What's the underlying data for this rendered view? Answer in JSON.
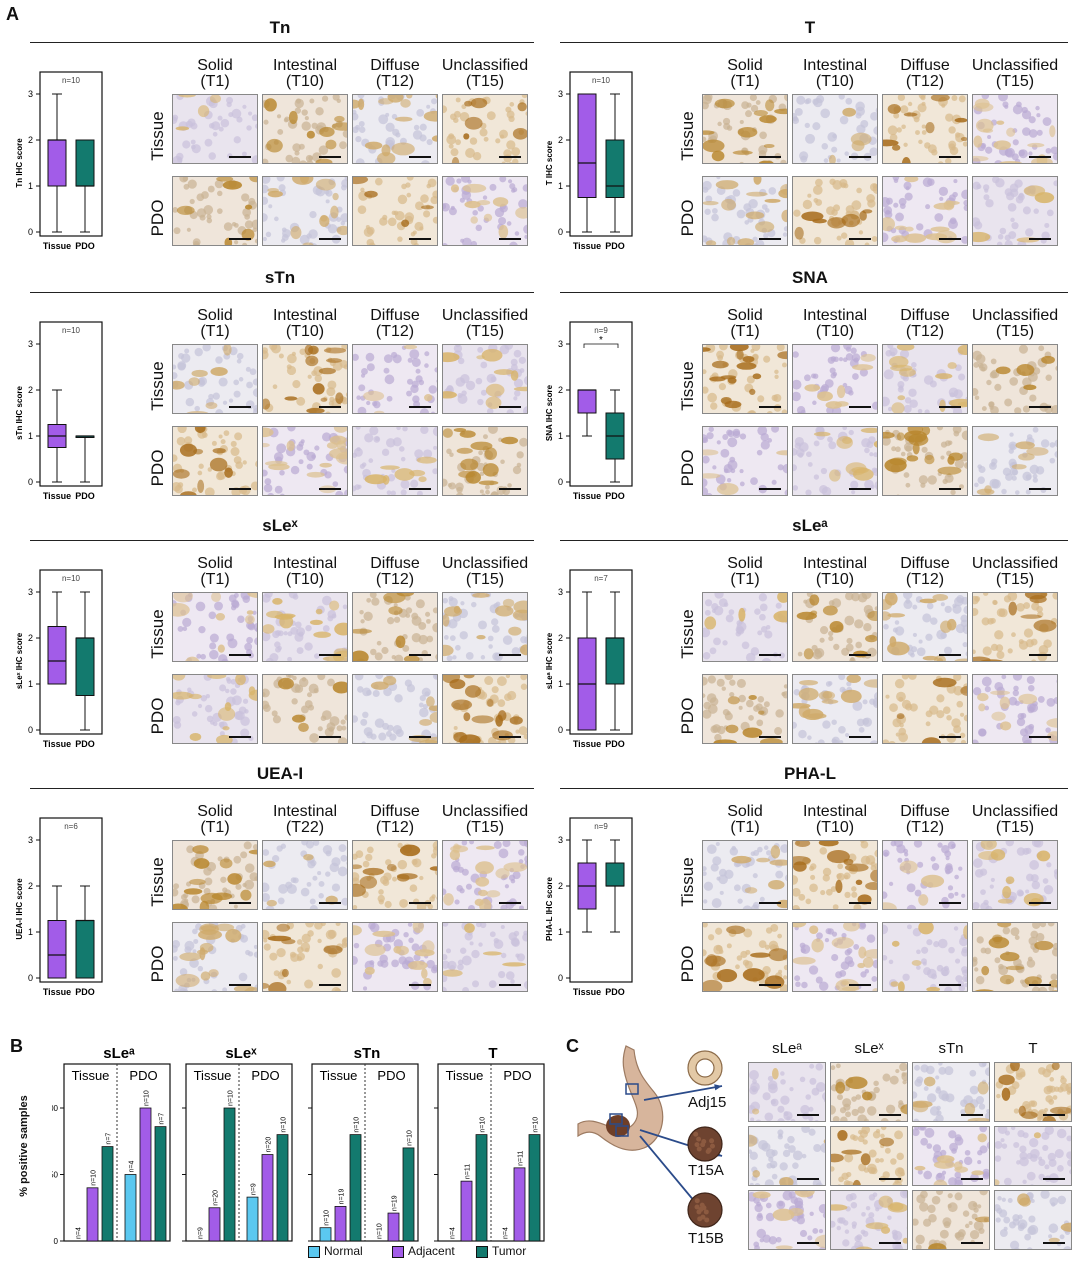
{
  "panel_a": {
    "letter": "A",
    "col_headers": {
      "default": [
        {
          "l1": "Solid",
          "l2": "(T1)"
        },
        {
          "l1": "Intestinal",
          "l2": "(T10)"
        },
        {
          "l1": "Diffuse",
          "l2": "(T12)"
        },
        {
          "l1": "Unclassified",
          "l2": "(T15)"
        }
      ],
      "uea": [
        {
          "l1": "Solid",
          "l2": "(T1)"
        },
        {
          "l1": "Intestinal",
          "l2": "(T22)"
        },
        {
          "l1": "Diffuse",
          "l2": "(T12)"
        },
        {
          "l1": "Unclassified",
          "l2": "(T15)"
        }
      ]
    },
    "row_labels": [
      "Tissue",
      "PDO"
    ],
    "sections": [
      {
        "title": "Tn"
      },
      {
        "title": "T"
      },
      {
        "title": "sTn"
      },
      {
        "title": "SNA"
      },
      {
        "title": "sLeˣ"
      },
      {
        "title": "sLeᵃ"
      },
      {
        "title": "UEA-I"
      },
      {
        "title": "PHA-L"
      }
    ]
  },
  "panel_b": {
    "letter": "B",
    "y_label": "% positive samples",
    "groups": [
      "Tissue",
      "PDO"
    ],
    "legend": [
      {
        "label": "Normal",
        "color": "#5bc8f0"
      },
      {
        "label": "Adjacent",
        "color": "#a25ce8"
      },
      {
        "label": "Tumor",
        "color": "#137a6e"
      }
    ]
  },
  "panel_c": {
    "letter": "C",
    "col_headers": [
      "sLeᵃ",
      "sLeˣ",
      "sTn",
      "T"
    ],
    "row_labels": [
      "Adj15",
      "T15A",
      "T15B"
    ]
  },
  "chart_data": [
    {
      "type": "box",
      "title": "",
      "ylabel": "Tn IHC score",
      "n_label": "n=10",
      "categories": [
        "Tissue",
        "PDO"
      ],
      "ylim": [
        0,
        3
      ],
      "boxes": [
        {
          "min": 0,
          "q1": 1,
          "median": 2,
          "q3": 2,
          "max": 3
        },
        {
          "min": 0,
          "q1": 1,
          "median": 1,
          "q3": 2,
          "max": 2
        }
      ]
    },
    {
      "type": "box",
      "title": "",
      "ylabel": "T IHC score",
      "n_label": "n=10",
      "categories": [
        "Tissue",
        "PDO"
      ],
      "ylim": [
        0,
        3
      ],
      "boxes": [
        {
          "min": 0,
          "q1": 0.75,
          "median": 1.5,
          "q3": 3,
          "max": 3
        },
        {
          "min": 0,
          "q1": 0.75,
          "median": 1,
          "q3": 2,
          "max": 3
        }
      ]
    },
    {
      "type": "box",
      "title": "",
      "ylabel": "sTn IHC score",
      "n_label": "n=10",
      "categories": [
        "Tissue",
        "PDO"
      ],
      "ylim": [
        0,
        3
      ],
      "boxes": [
        {
          "min": 0,
          "q1": 0.75,
          "median": 1,
          "q3": 1.25,
          "max": 2
        },
        {
          "min": 0,
          "q1": 1,
          "median": 1,
          "q3": 1,
          "max": 1
        }
      ]
    },
    {
      "type": "box",
      "title": "",
      "ylabel": "SNA IHC score",
      "n_label": "n=9",
      "significance": "*",
      "categories": [
        "Tissue",
        "PDO"
      ],
      "ylim": [
        0,
        3
      ],
      "boxes": [
        {
          "min": 1,
          "q1": 1.5,
          "median": 2,
          "q3": 2,
          "max": 2
        },
        {
          "min": 0,
          "q1": 0.5,
          "median": 1,
          "q3": 1.5,
          "max": 2
        }
      ]
    },
    {
      "type": "box",
      "title": "",
      "ylabel": "sLeˣ IHC score",
      "n_label": "n=10",
      "categories": [
        "Tissue",
        "PDO"
      ],
      "ylim": [
        0,
        3
      ],
      "boxes": [
        {
          "min": 1,
          "q1": 1,
          "median": 1.5,
          "q3": 2.25,
          "max": 3
        },
        {
          "min": 0,
          "q1": 0.75,
          "median": 2,
          "q3": 2,
          "max": 3
        }
      ]
    },
    {
      "type": "box",
      "title": "",
      "ylabel": "sLeᵃ IHC score",
      "n_label": "n=7",
      "categories": [
        "Tissue",
        "PDO"
      ],
      "ylim": [
        0,
        3
      ],
      "boxes": [
        {
          "min": 0,
          "q1": 0,
          "median": 1,
          "q3": 2,
          "max": 3
        },
        {
          "min": 0,
          "q1": 1,
          "median": 2,
          "q3": 2,
          "max": 3
        }
      ]
    },
    {
      "type": "box",
      "title": "",
      "ylabel": "UEA-I IHC score",
      "n_label": "n=6",
      "categories": [
        "Tissue",
        "PDO"
      ],
      "ylim": [
        0,
        3
      ],
      "boxes": [
        {
          "min": 0,
          "q1": 0,
          "median": 0.5,
          "q3": 1.25,
          "max": 2
        },
        {
          "min": 0,
          "q1": 0,
          "median": 1.25,
          "q3": 1.25,
          "max": 2
        }
      ]
    },
    {
      "type": "box",
      "title": "",
      "ylabel": "PHA-L IHC score",
      "n_label": "n=9",
      "categories": [
        "Tissue",
        "PDO"
      ],
      "ylim": [
        0,
        3
      ],
      "boxes": [
        {
          "min": 1,
          "q1": 1.5,
          "median": 2,
          "q3": 2.5,
          "max": 3
        },
        {
          "min": 1,
          "q1": 2,
          "median": 2,
          "q3": 2.5,
          "max": 3
        }
      ]
    },
    {
      "type": "bar",
      "title": "sLeᵃ",
      "ylabel": "% positive samples",
      "ylim": [
        0,
        100
      ],
      "yticks": [
        0,
        50,
        100
      ],
      "groups": [
        "Tissue",
        "PDO"
      ],
      "series": [
        {
          "name": "Normal",
          "values": [
            0,
            50
          ],
          "n": [
            "n=4",
            "n=4"
          ]
        },
        {
          "name": "Adjacent",
          "values": [
            40,
            100
          ],
          "n": [
            "n=10",
            "n=10"
          ]
        },
        {
          "name": "Tumor",
          "values": [
            71,
            86
          ],
          "n": [
            "n=7",
            "n=7"
          ]
        }
      ]
    },
    {
      "type": "bar",
      "title": "sLeˣ",
      "ylabel": "% positive samples",
      "ylim": [
        0,
        100
      ],
      "yticks": [
        0,
        50,
        100
      ],
      "groups": [
        "Tissue",
        "PDO"
      ],
      "series": [
        {
          "name": "Normal",
          "values": [
            0,
            33
          ],
          "n": [
            "n=9",
            "n=9"
          ]
        },
        {
          "name": "Adjacent",
          "values": [
            25,
            65
          ],
          "n": [
            "n=20",
            "n=20"
          ]
        },
        {
          "name": "Tumor",
          "values": [
            100,
            80
          ],
          "n": [
            "n=10",
            "n=10"
          ]
        }
      ]
    },
    {
      "type": "bar",
      "title": "sTn",
      "ylabel": "% positive samples",
      "ylim": [
        0,
        100
      ],
      "yticks": [
        0,
        50,
        100
      ],
      "groups": [
        "Tissue",
        "PDO"
      ],
      "series": [
        {
          "name": "Normal",
          "values": [
            10,
            0
          ],
          "n": [
            "n=10",
            "n=10"
          ]
        },
        {
          "name": "Adjacent",
          "values": [
            26,
            21
          ],
          "n": [
            "n=19",
            "n=19"
          ]
        },
        {
          "name": "Tumor",
          "values": [
            80,
            70
          ],
          "n": [
            "n=10",
            "n=10"
          ]
        }
      ]
    },
    {
      "type": "bar",
      "title": "T",
      "ylabel": "% positive samples",
      "ylim": [
        0,
        100
      ],
      "yticks": [
        0,
        50,
        100
      ],
      "groups": [
        "Tissue",
        "PDO"
      ],
      "series": [
        {
          "name": "Normal",
          "values": [
            0,
            0
          ],
          "n": [
            "n=4",
            "n=4"
          ]
        },
        {
          "name": "Adjacent",
          "values": [
            45,
            55
          ],
          "n": [
            "n=11",
            "n=11"
          ]
        },
        {
          "name": "Tumor",
          "values": [
            80,
            80
          ],
          "n": [
            "n=10",
            "n=10"
          ]
        }
      ]
    }
  ]
}
